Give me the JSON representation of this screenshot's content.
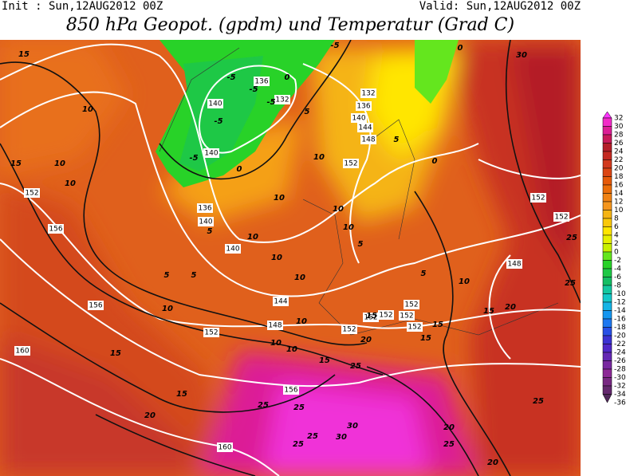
{
  "header": {
    "init": "Init : Sun,12AUG2012 00Z",
    "valid": "Valid: Sun,12AUG2012 00Z",
    "title": "850 hPa Geopot. (gpdm) und Temperatur (Grad C)"
  },
  "map": {
    "geopotential_labels": [
      136,
      132,
      140,
      132,
      136,
      140,
      144,
      148,
      152,
      140,
      136,
      140,
      140,
      152,
      156,
      156,
      144,
      148,
      152,
      152,
      152,
      152,
      152,
      152,
      152,
      160,
      156,
      160,
      152,
      152,
      148
    ],
    "temperature_labels": [
      15,
      10,
      15,
      10,
      10,
      -5,
      -5,
      -5,
      -5,
      -5,
      -5,
      0,
      0,
      0,
      0,
      5,
      5,
      5,
      5,
      5,
      5,
      5,
      10,
      10,
      10,
      10,
      10,
      10,
      10,
      10,
      10,
      10,
      10,
      10,
      15,
      15,
      15,
      15,
      15,
      15,
      15,
      20,
      20,
      20,
      20,
      20,
      25,
      25,
      25,
      25,
      25,
      25,
      25,
      25,
      25,
      30,
      30,
      30
    ],
    "colorbar": {
      "levels": [
        32,
        30,
        28,
        26,
        24,
        22,
        20,
        18,
        16,
        14,
        12,
        10,
        8,
        6,
        4,
        2,
        0,
        -2,
        -4,
        -6,
        -8,
        -10,
        -12,
        -14,
        -16,
        -18,
        -20,
        -22,
        -24,
        -26,
        -28,
        -30,
        -32,
        -34,
        -36
      ],
      "colors": [
        "#ff33ff",
        "#f22cc8",
        "#dc1e96",
        "#c81a5a",
        "#b41e28",
        "#c42a22",
        "#d23a1e",
        "#dc4614",
        "#e65a0a",
        "#eb6e0a",
        "#f08214",
        "#f5961e",
        "#f5b414",
        "#fac80a",
        "#ffe600",
        "#e6f000",
        "#c8f000",
        "#64e61e",
        "#28d228",
        "#1ec846",
        "#14be64",
        "#14c8a0",
        "#14c8c8",
        "#14b4e6",
        "#1496f0",
        "#1e78f0",
        "#2850e6",
        "#3c32d2",
        "#5028c8",
        "#6428b4",
        "#7828a0",
        "#8c2896",
        "#782882",
        "#64286e",
        "#50285a"
      ]
    }
  }
}
